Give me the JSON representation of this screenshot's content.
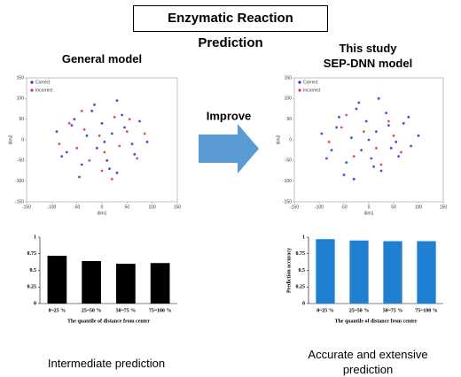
{
  "title": "Enzymatic Reaction Prediction",
  "annotation": "Improve",
  "chart_data": [
    {
      "type": "scatter",
      "title": "General model",
      "xlabel": "dim1",
      "ylabel": "dim2",
      "xlim": [
        -150,
        150
      ],
      "ylim": [
        -150,
        150
      ],
      "xticks": [
        -150,
        -100,
        -50,
        0,
        50,
        100,
        150
      ],
      "yticks": [
        -150,
        -100,
        -50,
        0,
        50,
        100,
        150
      ],
      "legend": "upper left",
      "series": [
        {
          "name": "Correct",
          "color": "#2a2ae0",
          "x": [
            -90,
            -70,
            -55,
            -40,
            -30,
            -20,
            -10,
            0,
            10,
            20,
            30,
            45,
            60,
            75,
            90,
            -80,
            -45,
            -15,
            15,
            40,
            65,
            -60,
            5,
            30
          ],
          "y": [
            20,
            -30,
            50,
            -60,
            10,
            70,
            -20,
            40,
            -50,
            15,
            -80,
            30,
            -10,
            45,
            -5,
            -40,
            -90,
            85,
            -70,
            60,
            -35,
            35,
            -5,
            95
          ]
        },
        {
          "name": "Incorrect",
          "color": "#e0303c",
          "x": [
            -85,
            -65,
            -50,
            -35,
            -25,
            -5,
            5,
            25,
            35,
            50,
            70,
            85,
            -40,
            0,
            20,
            55
          ],
          "y": [
            -10,
            40,
            -20,
            25,
            -50,
            10,
            -30,
            55,
            -15,
            20,
            -45,
            15,
            70,
            -75,
            -95,
            50
          ]
        }
      ]
    },
    {
      "type": "scatter",
      "title": "This study",
      "subtitle": "SEP-DNN model",
      "xlabel": "dim1",
      "ylabel": "dim2",
      "xlim": [
        -150,
        150
      ],
      "ylim": [
        -150,
        150
      ],
      "xticks": [
        -150,
        -100,
        -50,
        0,
        50,
        100,
        150
      ],
      "yticks": [
        -150,
        -100,
        -50,
        0,
        50,
        100,
        150
      ],
      "legend": "upper left",
      "series": [
        {
          "name": "Correct",
          "color": "#2a2ae0",
          "x": [
            -95,
            -75,
            -60,
            -45,
            -35,
            -25,
            -15,
            -5,
            5,
            15,
            25,
            40,
            55,
            70,
            85,
            100,
            -85,
            -50,
            -20,
            10,
            35,
            60,
            -65,
            0,
            20,
            45,
            -30,
            80
          ],
          "y": [
            15,
            -25,
            55,
            -55,
            5,
            75,
            -25,
            45,
            -45,
            20,
            -75,
            35,
            -5,
            40,
            -15,
            10,
            -45,
            -85,
            90,
            -65,
            65,
            -40,
            30,
            0,
            100,
            -20,
            -95,
            55
          ]
        },
        {
          "name": "Incorrect",
          "color": "#e0303c",
          "x": [
            -80,
            -55,
            -30,
            -10,
            15,
            40,
            65,
            -45,
            25,
            50
          ],
          "y": [
            -5,
            30,
            -40,
            20,
            -20,
            45,
            -30,
            60,
            -60,
            10
          ]
        }
      ]
    },
    {
      "type": "bar",
      "xlabel": "The quantile of distance from center",
      "caption": "Intermediate prediction",
      "categories": [
        "0~25 %",
        "25~50 %",
        "50~75 %",
        "75~100 %"
      ],
      "values": [
        0.72,
        0.64,
        0.6,
        0.61
      ],
      "color": "#000000",
      "ylim": [
        0,
        1
      ],
      "yticks": [
        0,
        0.25,
        0.5,
        0.75,
        1
      ]
    },
    {
      "type": "bar",
      "xlabel": "The quantile of distance from center",
      "ylabel": "Prediction accuracy",
      "caption": "Accurate and extensive prediction",
      "categories": [
        "0~25 %",
        "25~50 %",
        "50~75 %",
        "75~100 %"
      ],
      "values": [
        0.97,
        0.95,
        0.94,
        0.94
      ],
      "color": "#1f7fd0",
      "ylim": [
        0,
        1
      ],
      "yticks": [
        0,
        0.25,
        0.5,
        0.75,
        1
      ]
    }
  ]
}
